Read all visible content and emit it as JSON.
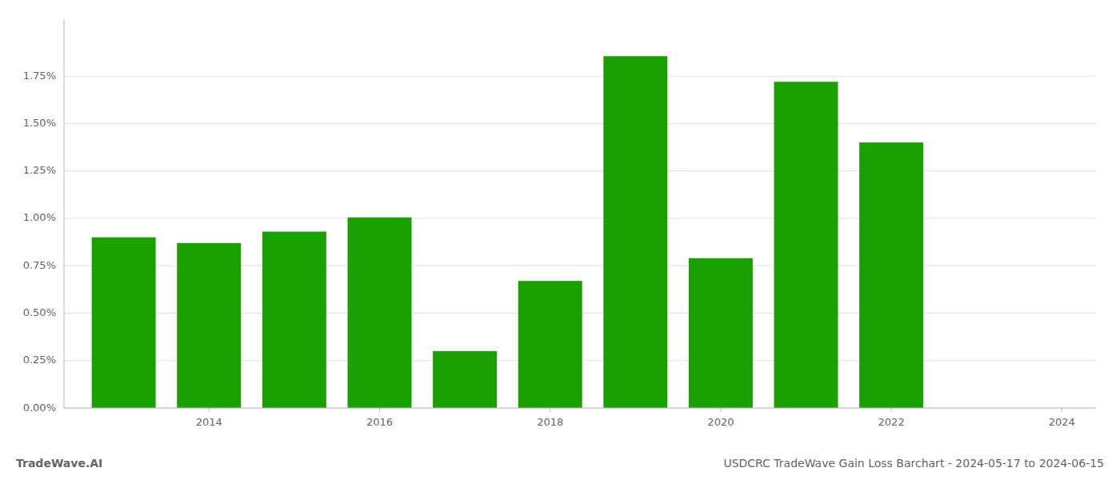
{
  "chart_data": {
    "type": "bar",
    "x": [
      2013,
      2014,
      2015,
      2016,
      2017,
      2018,
      2019,
      2020,
      2021,
      2022,
      2023
    ],
    "values": [
      0.009,
      0.0087,
      0.0093,
      0.01005,
      0.003,
      0.0067,
      0.01855,
      0.0079,
      0.0172,
      0.014,
      0.0
    ],
    "color": "#1aa000",
    "xlim": [
      2012.3,
      2024.4
    ],
    "xticks": [
      2014,
      2016,
      2018,
      2020,
      2022,
      2024
    ],
    "ylim": [
      0,
      0.0205
    ],
    "yticks": [
      {
        "value": 0.0,
        "label": "0.00%"
      },
      {
        "value": 0.0025,
        "label": "0.25%"
      },
      {
        "value": 0.005,
        "label": "0.50%"
      },
      {
        "value": 0.0075,
        "label": "0.75%"
      },
      {
        "value": 0.01,
        "label": "1.00%"
      },
      {
        "value": 0.0125,
        "label": "1.25%"
      },
      {
        "value": 0.015,
        "label": "1.50%"
      },
      {
        "value": 0.0175,
        "label": "1.75%"
      }
    ],
    "grid": true,
    "annotations": [
      "TradeWave.AI",
      "USDCRC TradeWave Gain Loss Barchart - 2024-05-17 to 2024-06-15"
    ]
  }
}
